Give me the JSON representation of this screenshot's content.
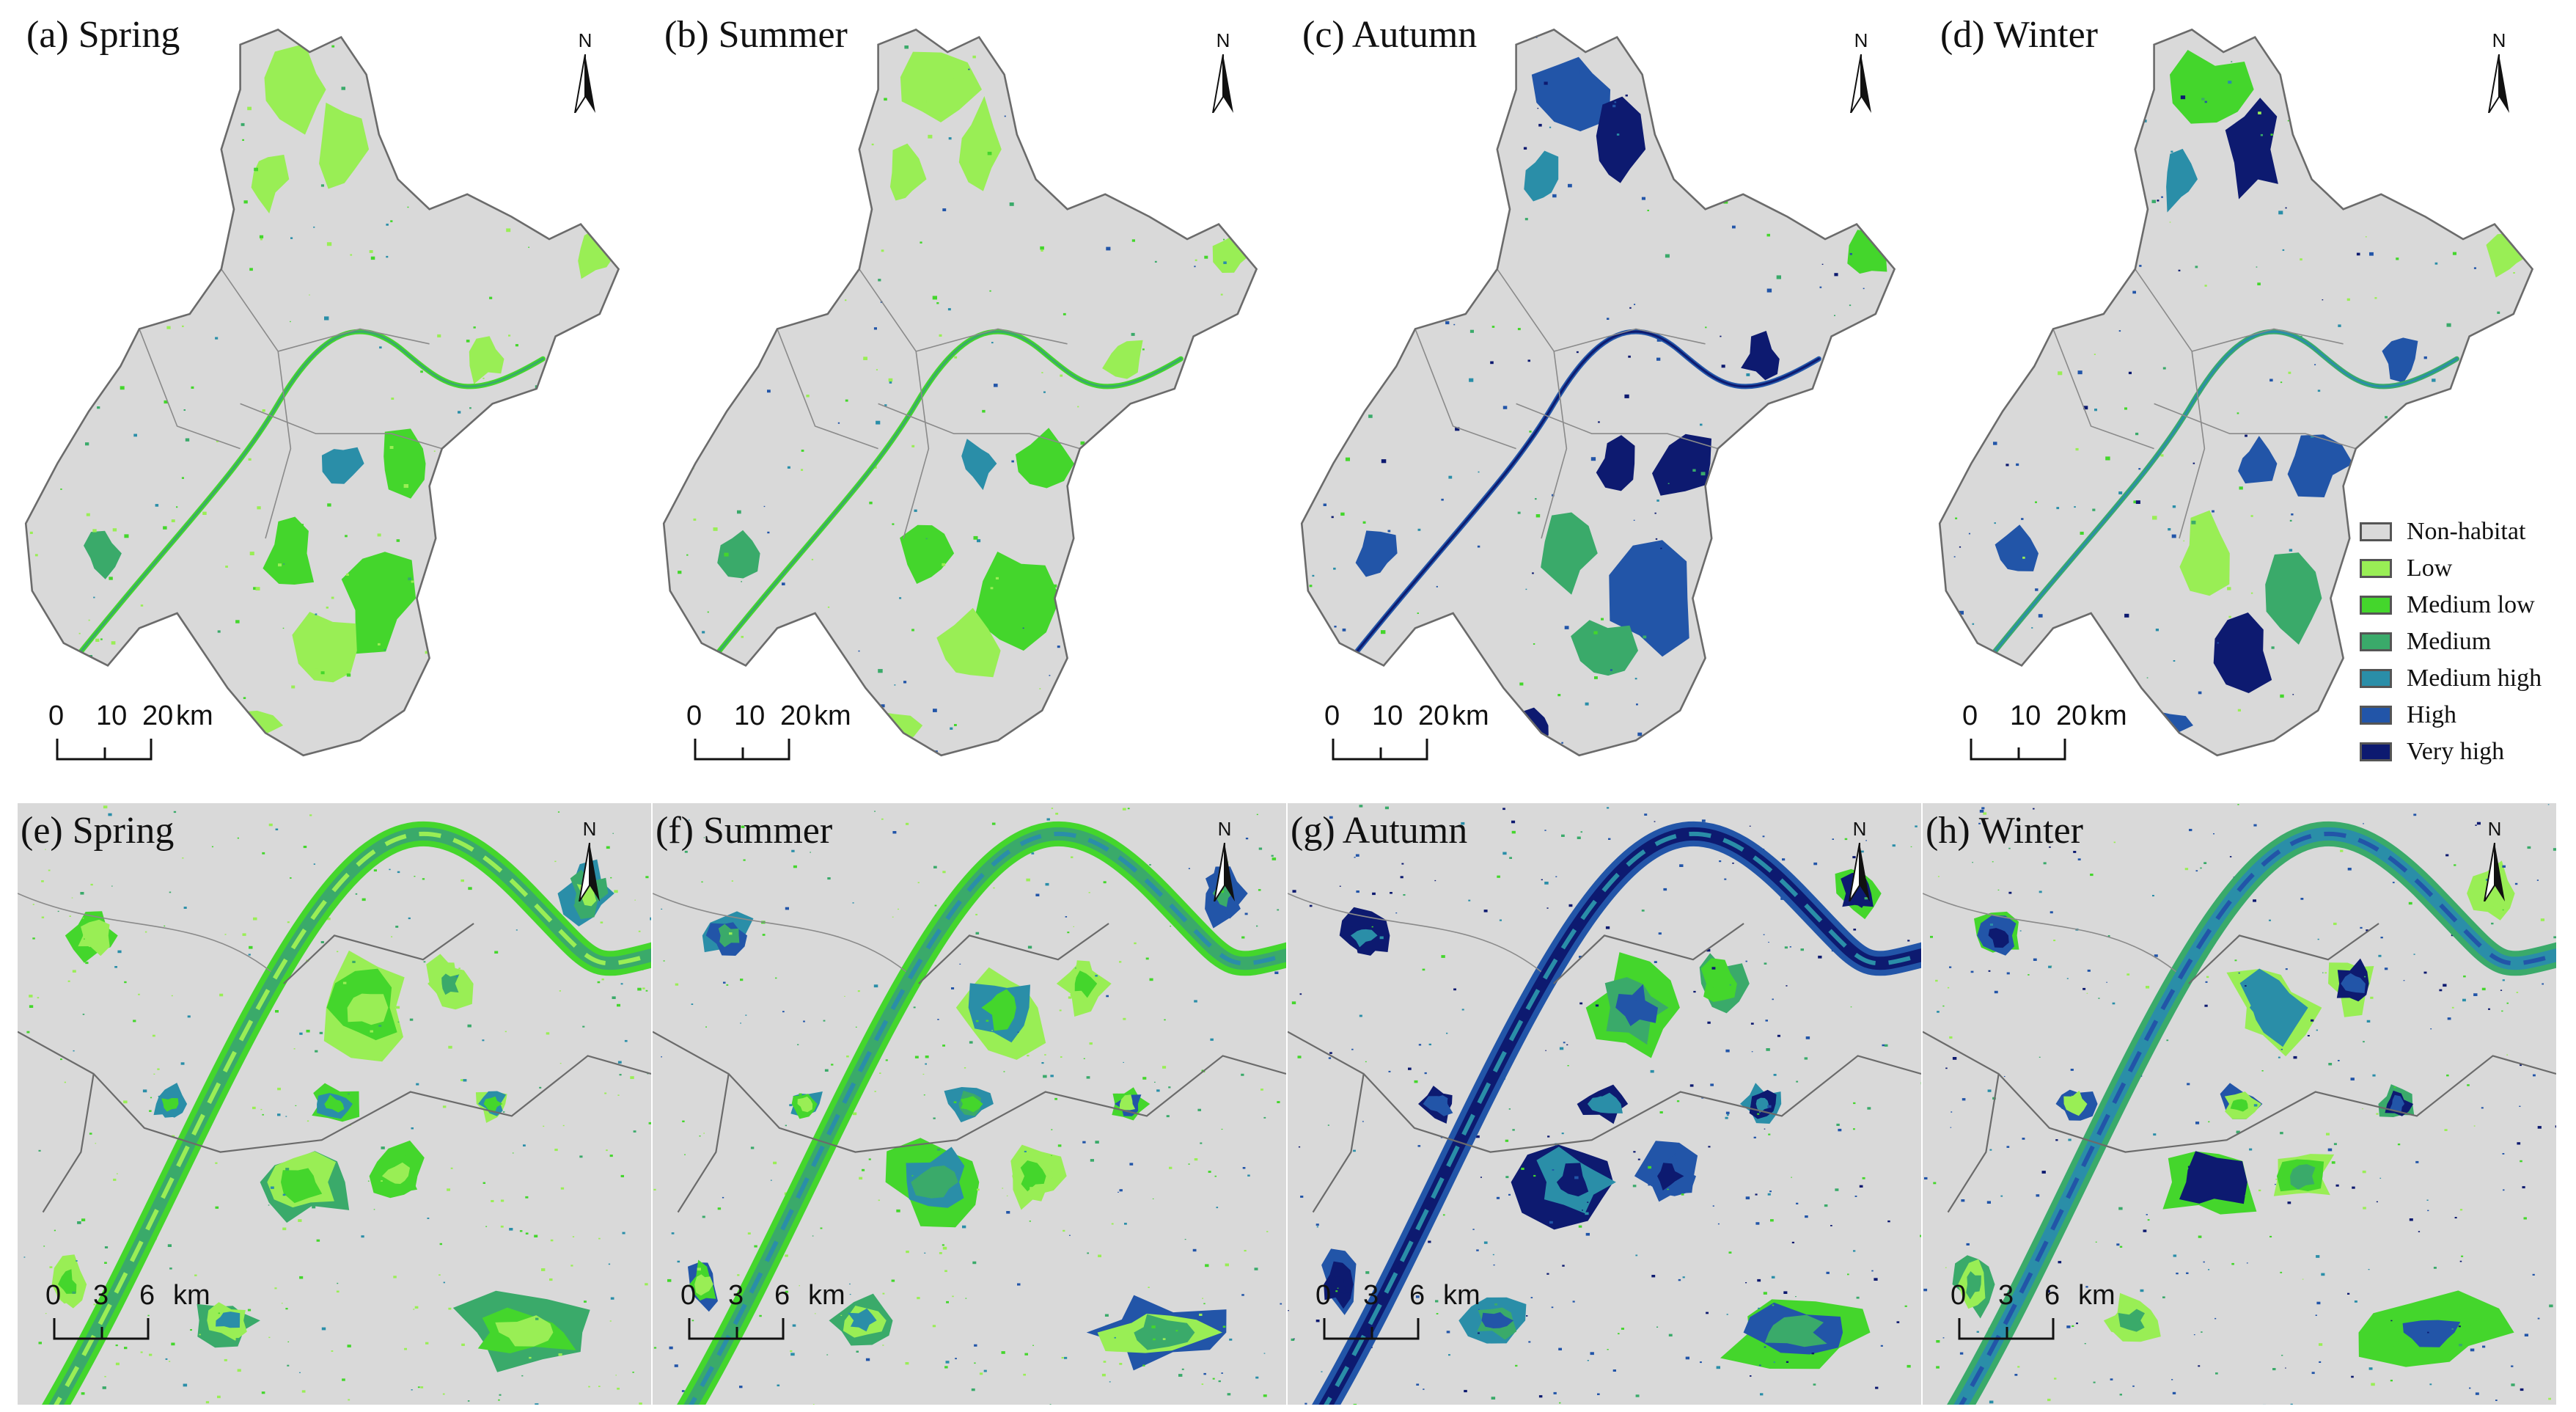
{
  "top_panels": [
    {
      "id": "a",
      "title": "(a) Spring",
      "season": "spring"
    },
    {
      "id": "b",
      "title": "(b) Summer",
      "season": "summer"
    },
    {
      "id": "c",
      "title": "(c) Autumn",
      "season": "autumn"
    },
    {
      "id": "d",
      "title": "(d) Winter",
      "season": "winter"
    }
  ],
  "bottom_panels": [
    {
      "id": "e",
      "title": "(e) Spring",
      "season": "spring"
    },
    {
      "id": "f",
      "title": "(f) Summer",
      "season": "summer"
    },
    {
      "id": "g",
      "title": "(g) Autumn",
      "season": "autumn"
    },
    {
      "id": "h",
      "title": "(h) Winter",
      "season": "winter"
    }
  ],
  "north_label": "N",
  "scale_top": {
    "ticks": [
      "0",
      "10",
      "20"
    ],
    "unit": "km"
  },
  "scale_bottom": {
    "ticks": [
      "0",
      "3",
      "6"
    ],
    "unit": "km"
  },
  "legend": [
    {
      "label": "Non-habitat",
      "color": "#d9d9d9"
    },
    {
      "label": "Low",
      "color": "#99ee55"
    },
    {
      "label": "Medium low",
      "color": "#44d62c"
    },
    {
      "label": "Medium",
      "color": "#3aaa6a"
    },
    {
      "label": "Medium high",
      "color": "#2a8ea8"
    },
    {
      "label": "High",
      "color": "#2255a8"
    },
    {
      "label": "Very high",
      "color": "#0d1a70"
    }
  ],
  "colors": {
    "nonhabitat": "#d9d9d9",
    "boundary": "#6b6b6b",
    "background": "#ffffff"
  }
}
